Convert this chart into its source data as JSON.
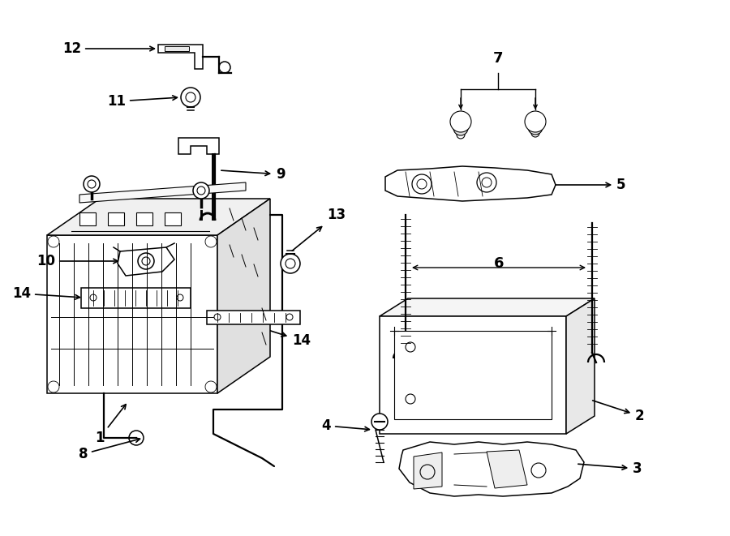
{
  "background_color": "#ffffff",
  "line_color": "#000000",
  "fig_width": 9.0,
  "fig_height": 6.61,
  "dpi": 100,
  "lw": 1.1,
  "fs": 11
}
